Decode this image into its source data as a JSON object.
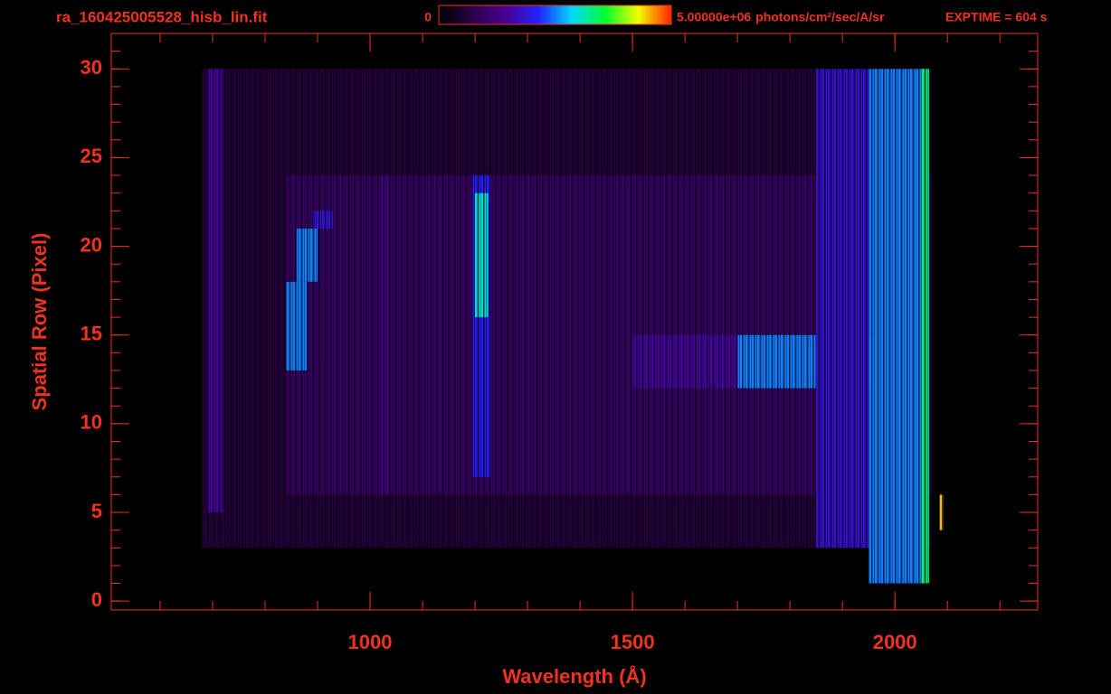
{
  "chart_data": {
    "type": "spectral-image",
    "title": "ra_160425005528_hisb_lin.fit",
    "xlabel": "Wavelength (Å)",
    "ylabel": "Spatial Row (Pixel)",
    "color": "#f0321e",
    "xlim": [
      507,
      2272
    ],
    "ylim": [
      -0.5,
      32
    ],
    "xticks": [
      1000,
      1500,
      2000
    ],
    "yticks": [
      0,
      5,
      10,
      15,
      20,
      25,
      30
    ],
    "xminor": 100,
    "yminor": 1,
    "colorbar": {
      "ticks": [
        0,
        {
          "value": 5000000,
          "label": "5.00000e+06"
        }
      ],
      "units": "photons/cm²/sec/A/sr",
      "colors": [
        "#000000",
        "#2a0048",
        "#4a0090",
        "#2222ff",
        "#00d8ff",
        "#00ff30",
        "#f0ff00",
        "#ff2000"
      ]
    },
    "exptime": "EXPTIME = 604 s",
    "regions": [
      {
        "x": [
          680,
          2070
        ],
        "y": [
          3,
          30
        ],
        "value": 600000
      },
      {
        "x": [
          840,
          2070
        ],
        "y": [
          6,
          24
        ],
        "value": 1000000
      },
      {
        "x": [
          690,
          720
        ],
        "y": [
          5,
          30
        ],
        "value": 1500000
      },
      {
        "x": [
          1020,
          1035
        ],
        "y": [
          6,
          24
        ],
        "value": 1300000
      },
      {
        "x": [
          840,
          880
        ],
        "y": [
          13,
          18
        ],
        "value": 2500000
      },
      {
        "x": [
          860,
          900
        ],
        "y": [
          18,
          21
        ],
        "value": 2500000
      },
      {
        "x": [
          890,
          930
        ],
        "y": [
          21,
          22
        ],
        "value": 1800000
      },
      {
        "x": [
          1195,
          1230
        ],
        "y": [
          7,
          24
        ],
        "value": 2000000
      },
      {
        "x": [
          1200,
          1225
        ],
        "y": [
          16,
          23
        ],
        "value": 3000000
      },
      {
        "x": [
          1500,
          1700
        ],
        "y": [
          12,
          15
        ],
        "value": 1500000
      },
      {
        "x": [
          1700,
          1900
        ],
        "y": [
          12,
          15
        ],
        "value": 2500000
      },
      {
        "x": [
          1900,
          2060
        ],
        "y": [
          12,
          15
        ],
        "value": 3200000
      },
      {
        "x": [
          1850,
          1950
        ],
        "y": [
          3,
          30
        ],
        "value": 1800000
      },
      {
        "x": [
          1950,
          2060
        ],
        "y": [
          1,
          30
        ],
        "value": 2500000
      },
      {
        "x": [
          2050,
          2065
        ],
        "y": [
          1,
          30
        ],
        "value": 3300000
      },
      {
        "x": [
          2085,
          2092
        ],
        "y": [
          4,
          6
        ],
        "value": 4500000
      }
    ]
  }
}
